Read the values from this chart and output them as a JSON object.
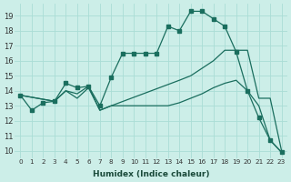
{
  "xlabel": "Humidex (Indice chaleur)",
  "bg_color": "#cceee8",
  "line_color": "#1a6e5e",
  "grid_color": "#aaddd5",
  "ylim": [
    9.5,
    19.8
  ],
  "xlim": [
    -0.5,
    23.5
  ],
  "yticks": [
    10,
    11,
    12,
    13,
    14,
    15,
    16,
    17,
    18,
    19
  ],
  "xticks": [
    0,
    1,
    2,
    3,
    4,
    5,
    6,
    7,
    8,
    9,
    10,
    11,
    12,
    13,
    14,
    15,
    16,
    17,
    18,
    19,
    20,
    21,
    22,
    23
  ],
  "series": [
    {
      "x": [
        0,
        1,
        2,
        3,
        4,
        5,
        6,
        7,
        8,
        9,
        10,
        11,
        12,
        13,
        14,
        15,
        16,
        17,
        18,
        19,
        20,
        21,
        22,
        23
      ],
      "y": [
        13.7,
        12.7,
        13.2,
        13.3,
        14.5,
        14.2,
        14.3,
        13.0,
        14.9,
        16.5,
        16.5,
        16.5,
        16.5,
        18.3,
        18.0,
        19.3,
        19.3,
        18.8,
        18.3,
        16.6,
        14.0,
        12.2,
        10.7,
        9.9
      ],
      "has_markers": true
    },
    {
      "x": [
        0,
        3,
        4,
        5,
        6,
        7,
        8,
        14,
        15,
        16,
        17,
        18,
        19,
        20,
        21,
        22,
        23
      ],
      "y": [
        13.7,
        13.3,
        14.0,
        13.8,
        14.3,
        12.7,
        13.0,
        14.7,
        15.0,
        15.5,
        16.0,
        16.7,
        16.7,
        16.7,
        13.5,
        13.5,
        10.0
      ],
      "has_markers": false
    },
    {
      "x": [
        0,
        3,
        4,
        5,
        6,
        7,
        8,
        9,
        10,
        11,
        12,
        13,
        14,
        15,
        16,
        17,
        18,
        19,
        20,
        21,
        22,
        23
      ],
      "y": [
        13.7,
        13.3,
        14.0,
        13.5,
        14.2,
        12.7,
        13.0,
        13.0,
        13.0,
        13.0,
        13.0,
        13.0,
        13.2,
        13.5,
        13.8,
        14.2,
        14.5,
        14.7,
        14.0,
        13.0,
        10.7,
        9.9
      ],
      "has_markers": false
    }
  ]
}
